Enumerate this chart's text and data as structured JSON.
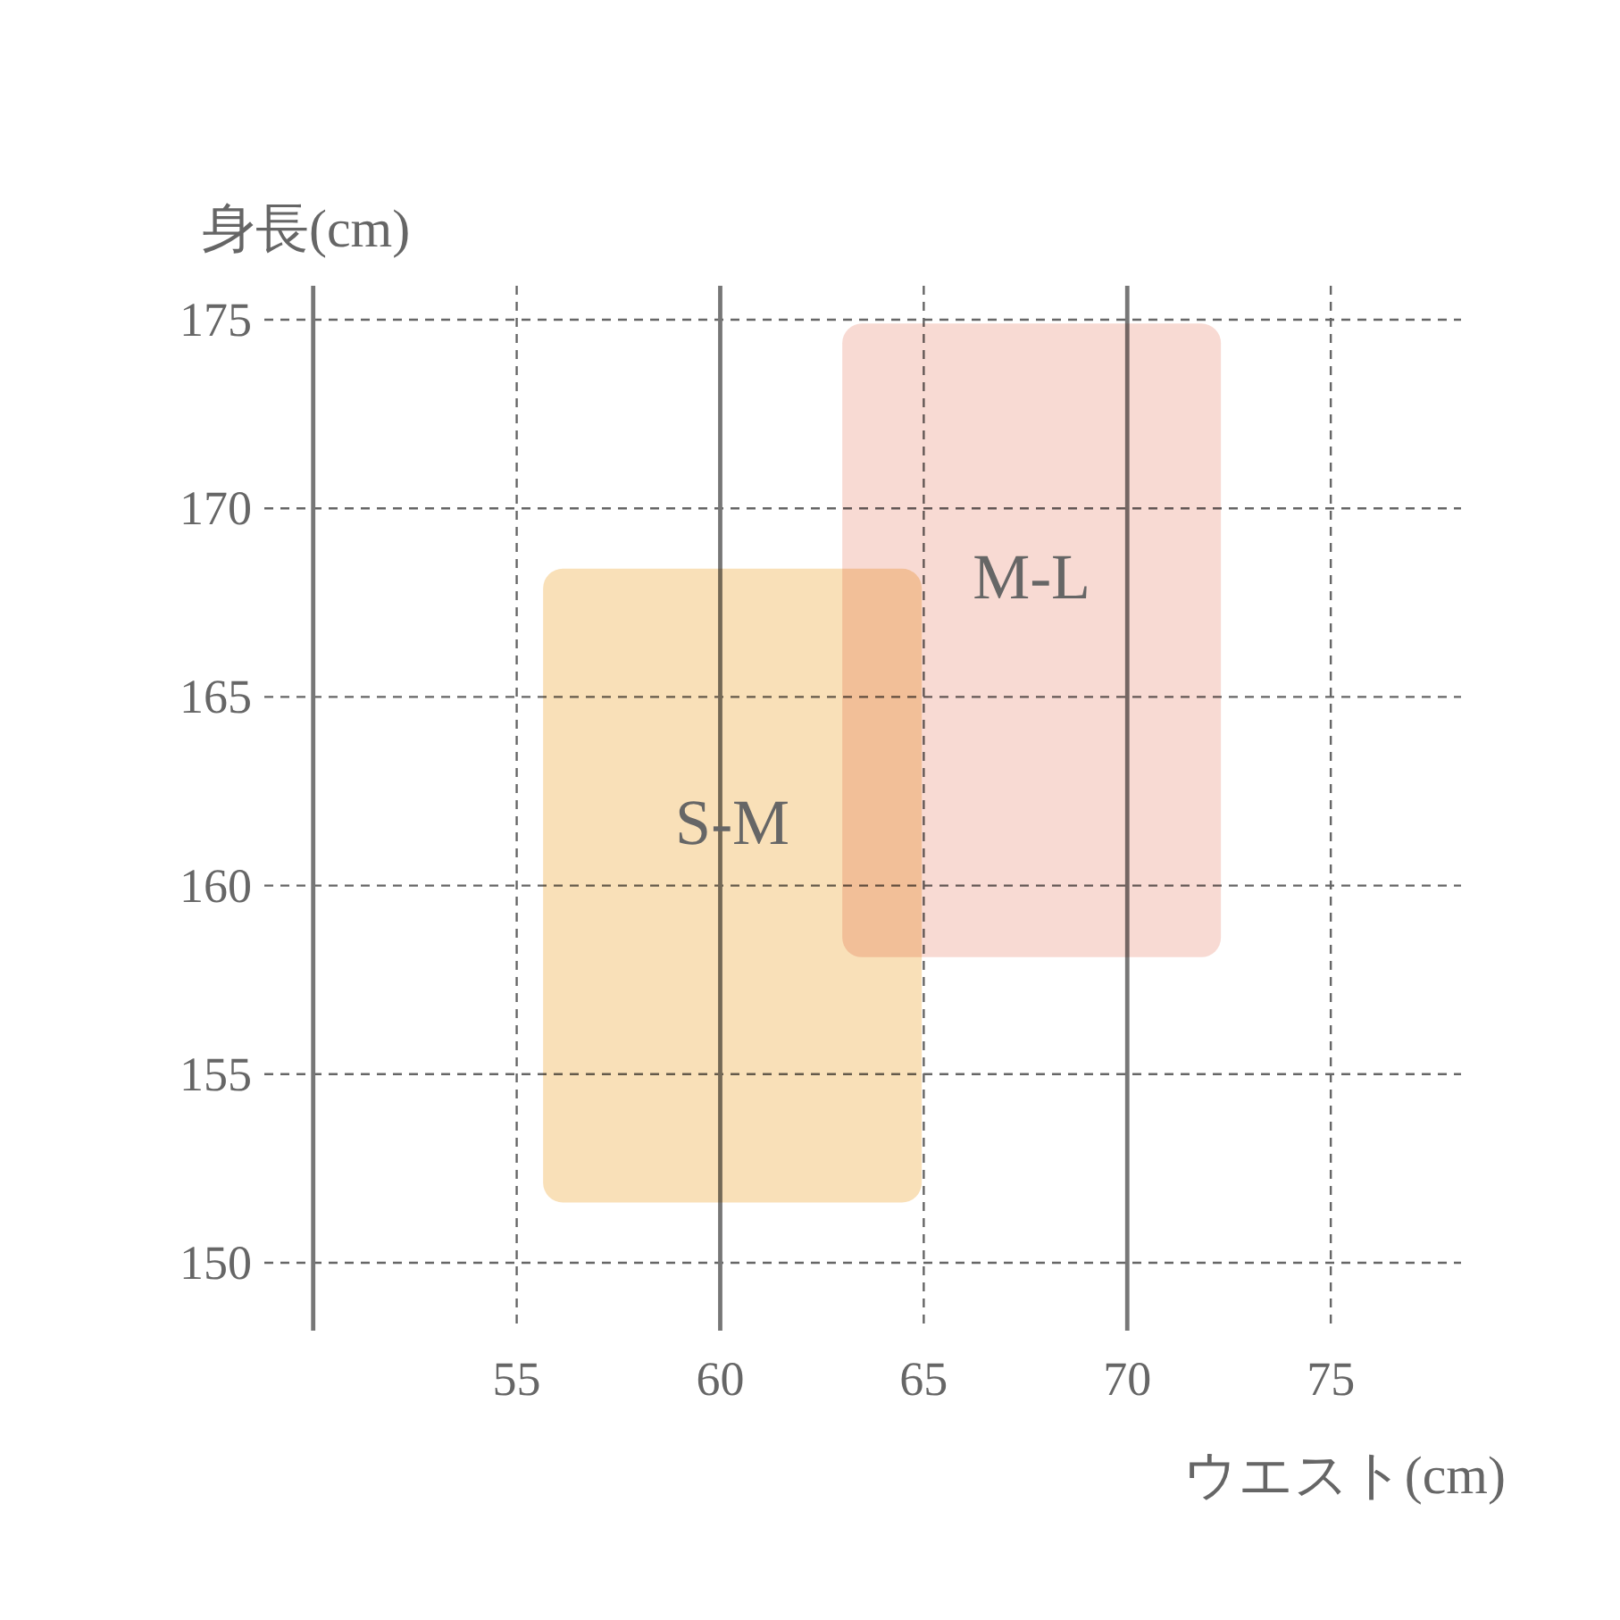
{
  "chart_data": {
    "type": "bar",
    "xlabel": "ウエスト(cm)",
    "ylabel": "身長(cm)",
    "grid": "y",
    "xlim": [
      48.8,
      78.2
    ],
    "ylim": [
      148.2,
      175.9
    ],
    "xticks": [
      55,
      60,
      65,
      70,
      75
    ],
    "yticks": [
      150,
      155,
      160,
      165,
      170,
      175
    ],
    "ref_lines": [
      {
        "axis": "x",
        "value": 50,
        "line_style": "solid",
        "color": "#777777"
      },
      {
        "axis": "x",
        "value": 55,
        "line_style": "dashed",
        "color": "#666666"
      },
      {
        "axis": "x",
        "value": 60,
        "line_style": "solid",
        "color": "#777777"
      },
      {
        "axis": "x",
        "value": 65,
        "line_style": "dashed",
        "color": "#666666"
      },
      {
        "axis": "x",
        "value": 70,
        "line_style": "solid",
        "color": "#777777"
      },
      {
        "axis": "x",
        "value": 75,
        "line_style": "dashed",
        "color": "#666666"
      }
    ],
    "series": [
      {
        "name": "S-M",
        "color": "#f9e0b8",
        "x": [
          60.3
        ],
        "base": [
          151.6
        ],
        "values": [
          16.8
        ]
      },
      {
        "name": "M-L",
        "color": "#f8dad3",
        "x": [
          67.65
        ],
        "base": [
          158.1
        ],
        "values": [
          16.8
        ]
      }
    ]
  }
}
